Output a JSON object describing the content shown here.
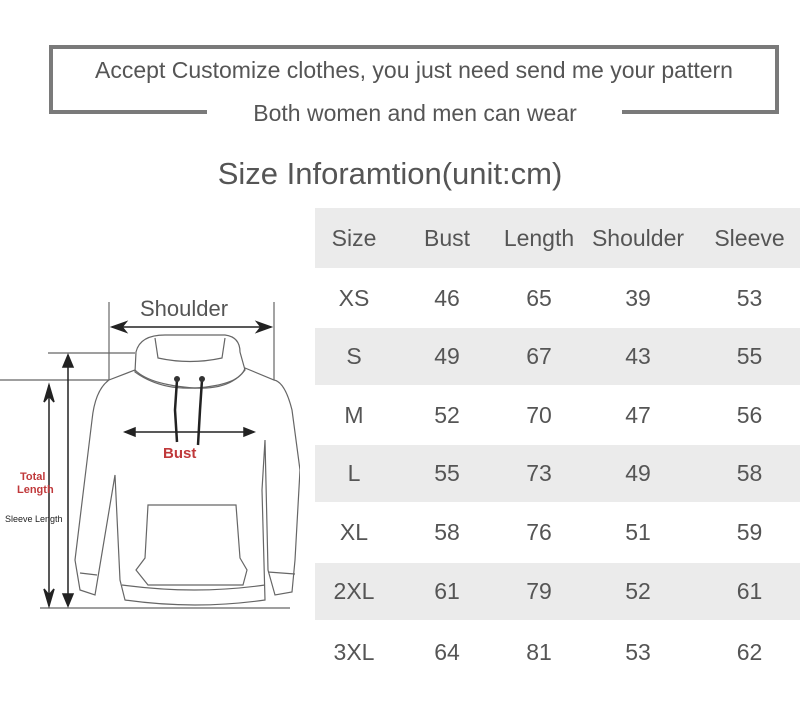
{
  "banner": {
    "line1": "Accept Customize clothes, you just need send me your pattern",
    "line2": "Both women and men can wear"
  },
  "title": "Size Inforamtion(unit:cm)",
  "table": {
    "headers": [
      "Size",
      "Bust",
      "Length",
      "Shoulder",
      "Sleeve"
    ],
    "rows": [
      [
        "XS",
        "46",
        "65",
        "39",
        "53"
      ],
      [
        "S",
        "49",
        "67",
        "43",
        "55"
      ],
      [
        "M",
        "52",
        "70",
        "47",
        "56"
      ],
      [
        "L",
        "55",
        "73",
        "49",
        "58"
      ],
      [
        "XL",
        "58",
        "76",
        "51",
        "59"
      ],
      [
        "2XL",
        "61",
        "79",
        "52",
        "61"
      ],
      [
        "3XL",
        "64",
        "81",
        "53",
        "62"
      ]
    ]
  },
  "diagram": {
    "shoulder": "Shoulder",
    "bust": "Bust",
    "total_length_1": "Total",
    "total_length_2": "Length",
    "sleeve_length": "Sleeve Length",
    "accent": "#c0393b"
  }
}
